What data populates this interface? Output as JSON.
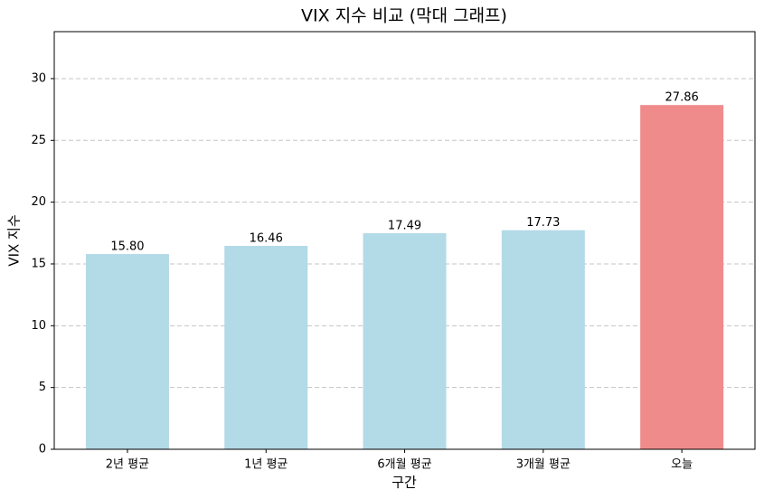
{
  "chart_data": {
    "type": "bar",
    "title": "VIX 지수 비교 (막대 그래프)",
    "x_label": "구간",
    "y_label": "VIX 지수",
    "categories": [
      "2년 평균",
      "1년 평균",
      "6개월 평균",
      "3개월 평균",
      "오늘"
    ],
    "values": [
      15.8,
      16.46,
      17.49,
      17.73,
      27.86
    ],
    "value_labels": [
      "15.80",
      "16.46",
      "17.49",
      "17.73",
      "27.86"
    ],
    "colors": [
      "#b3dae7",
      "#b3dae7",
      "#b3dae7",
      "#b3dae7",
      "#f08b8b"
    ],
    "ylim": [
      0,
      33.8
    ],
    "yticks": [
      0,
      5,
      10,
      15,
      20,
      25,
      30
    ],
    "grid": true
  }
}
